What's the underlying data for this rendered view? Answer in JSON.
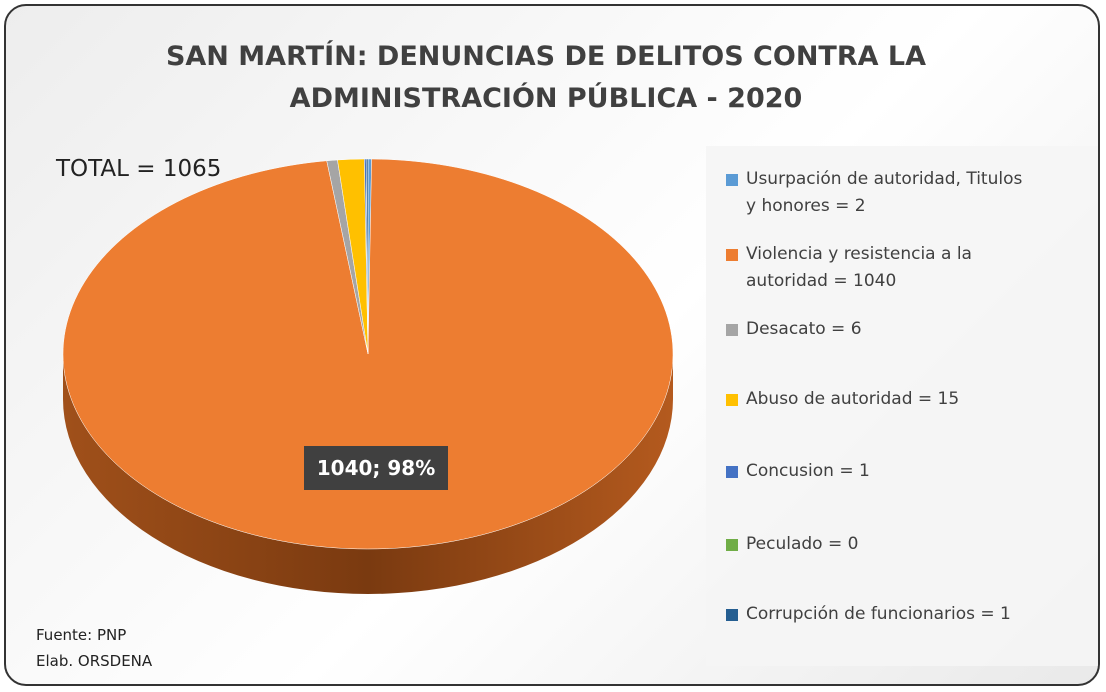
{
  "chart_data": {
    "type": "pie",
    "title": "SAN MARTÍN: DENUNCIAS DE DELITOS CONTRA LA ADMINISTRACIÓN PÚBLICA - 2020",
    "annotations": [
      "TOTAL = 1065",
      "Fuente: PNP",
      "Elab. ORSDENA"
    ],
    "categories": [
      "Usurpación de autoridad, Titulos y honores = 2",
      "Violencia y resistencia a la autoridad = 1040",
      "Desacato = 6",
      "Abuso de autoridad = 15",
      "Concusion = 1",
      "Peculado = 0",
      "Corrupción de funcionarios = 1"
    ],
    "values": [
      2,
      1040,
      6,
      15,
      1,
      0,
      1
    ],
    "value_labels": [
      null,
      "1040; 98%",
      null,
      null,
      null,
      null,
      null
    ],
    "colors": [
      "#5b9bd5",
      "#ed7d31",
      "#a5a5a5",
      "#ffc000",
      "#4472c4",
      "#70ad47",
      "#255e91"
    ],
    "legend": "right"
  }
}
